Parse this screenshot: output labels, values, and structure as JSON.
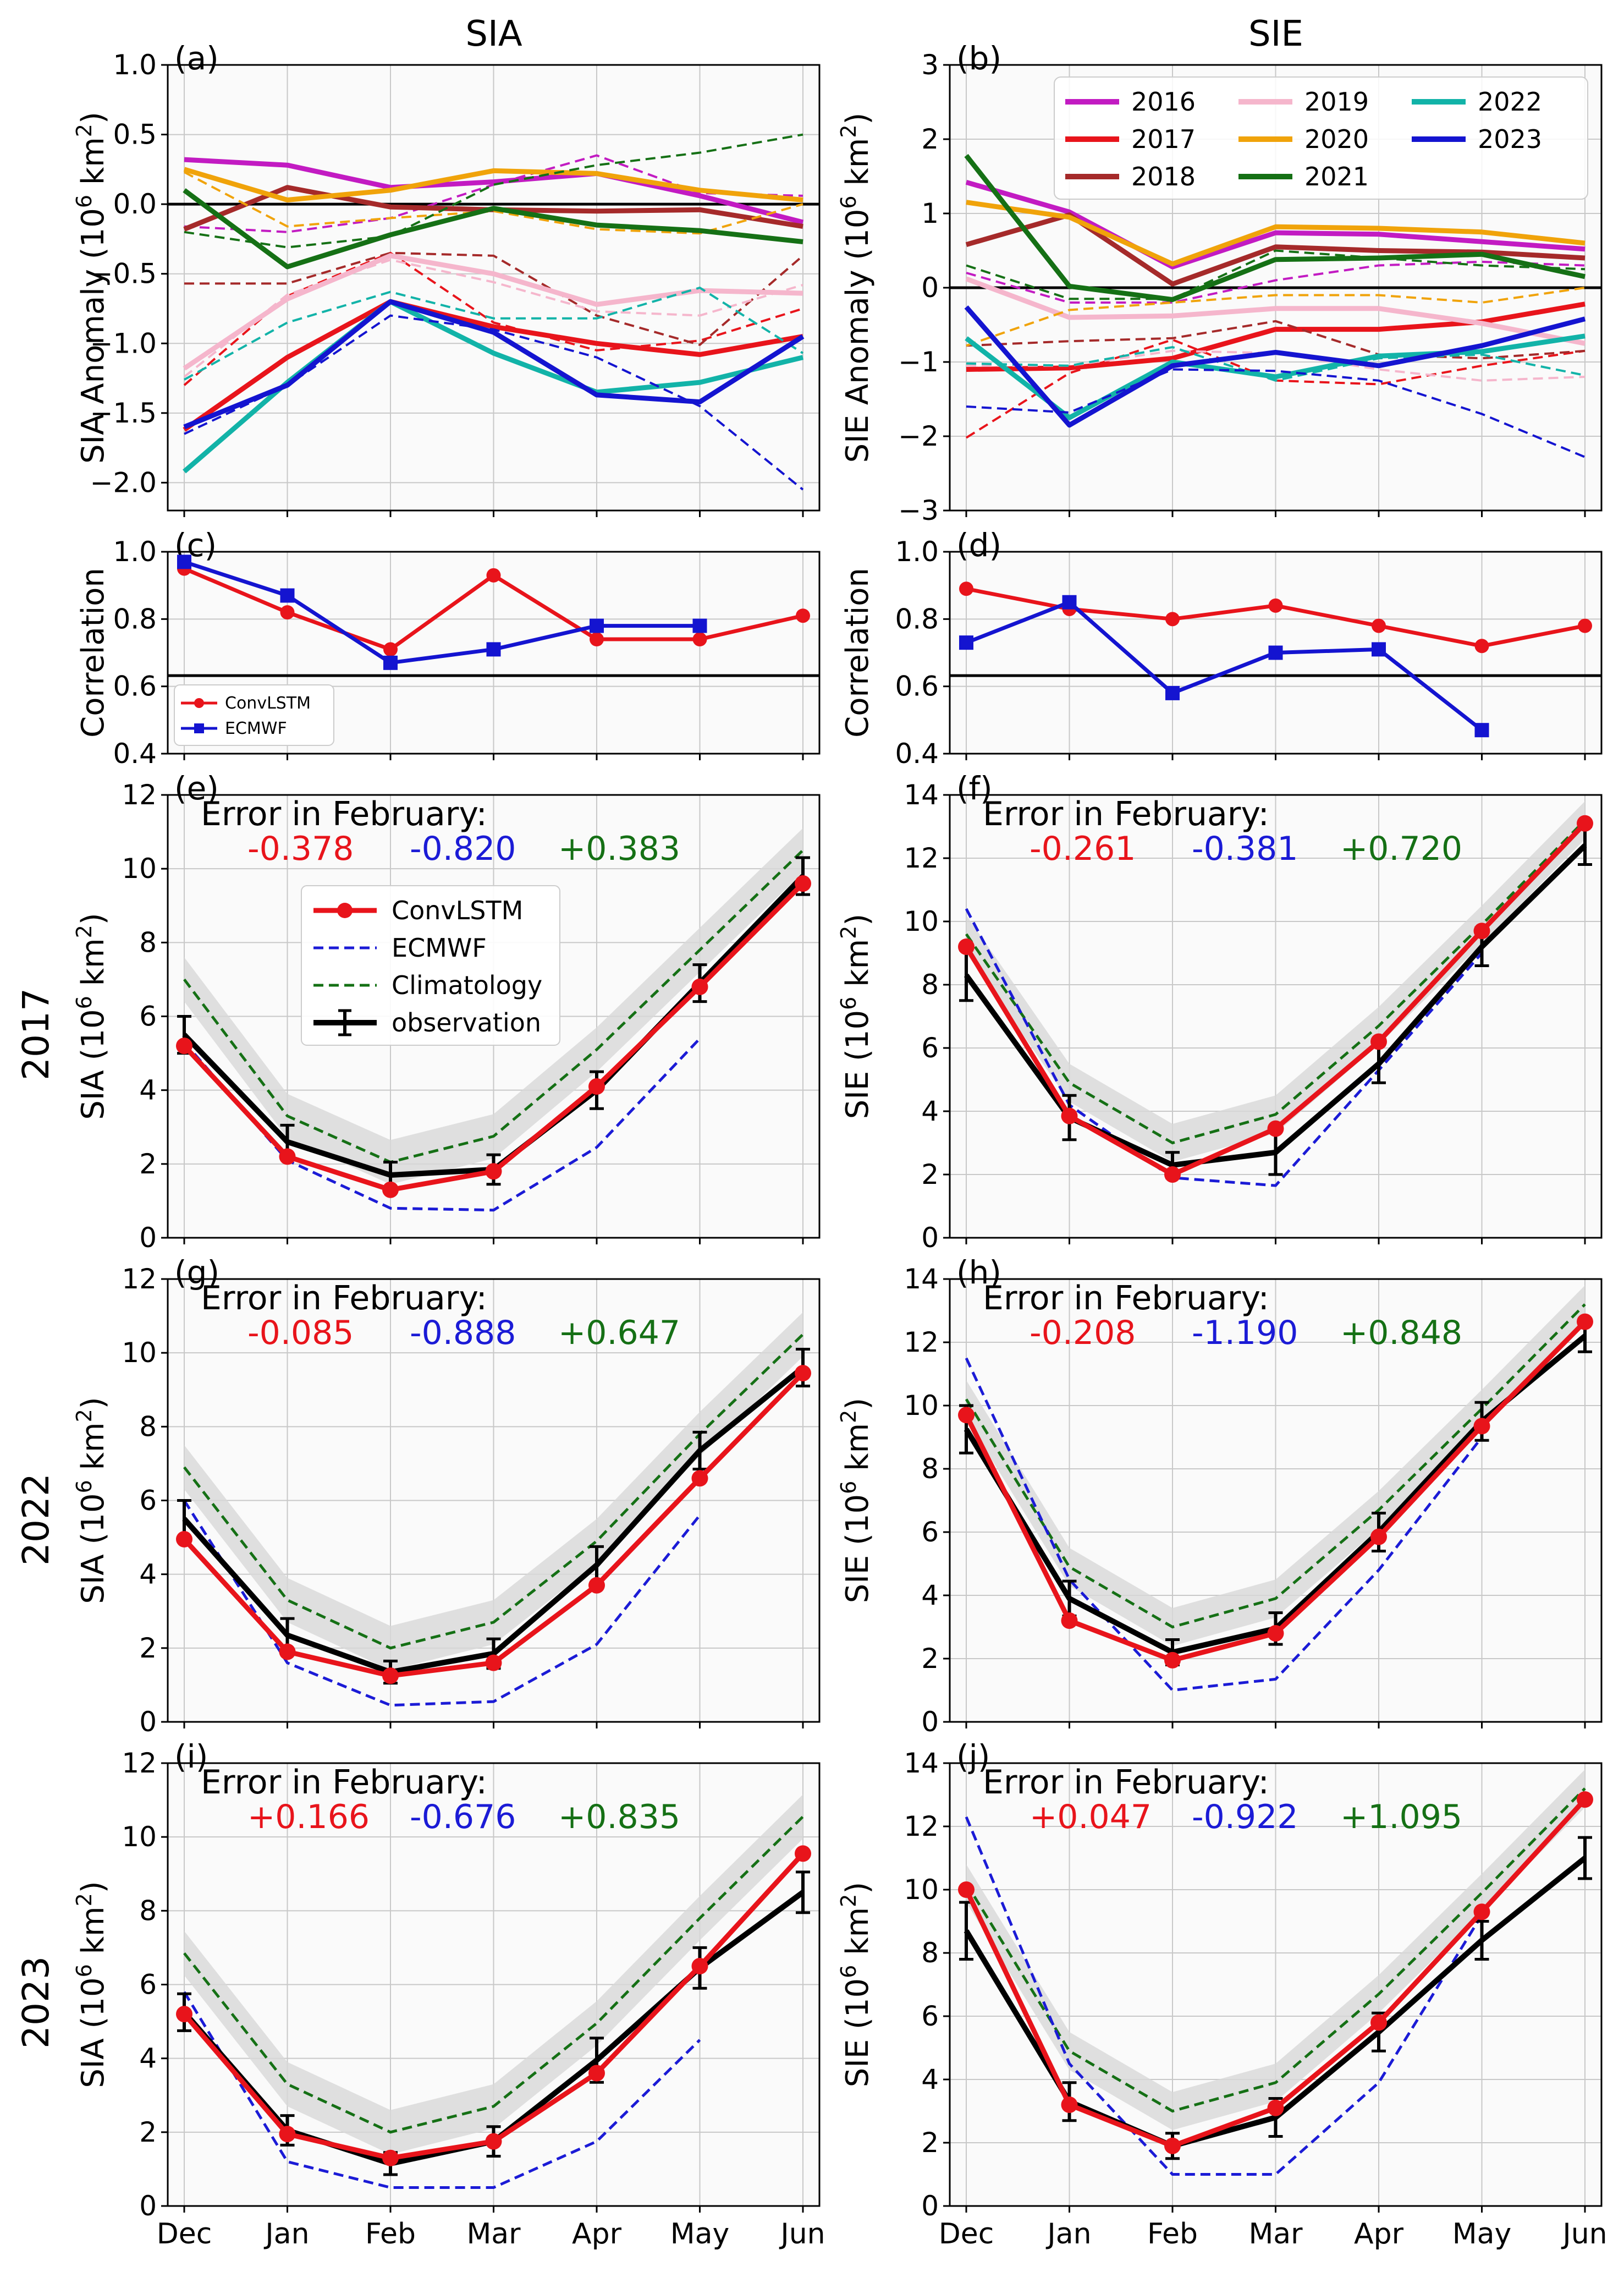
{
  "figure": {
    "col_titles": [
      "SIA",
      "SIE"
    ],
    "colors": {
      "convlstm": "#e8141b",
      "ecmwf": "#1b1bd6",
      "clim": "#157015",
      "obs": "#000000",
      "band": "#d8d8d8"
    },
    "months": [
      "Dec",
      "Jan",
      "Feb",
      "Mar",
      "Apr",
      "May",
      "Jun"
    ],
    "row_labels": [
      "2017",
      "2022",
      "2023"
    ],
    "error_title": "Error in February:"
  },
  "chart_data": [
    {
      "panel": "(a)",
      "type": "line",
      "ylabel": "SIA Anomaly (10^6 km^2)",
      "ylim": [
        -2.2,
        1.0
      ],
      "yticks": [
        -2.0,
        -1.5,
        -1.0,
        -0.5,
        0.0,
        0.5,
        1.0
      ],
      "ytick_labels": [
        "−2.0",
        "−1.5",
        "−1.0",
        "−0.5",
        "0.0",
        "0.5",
        "1.0"
      ],
      "zero_line": true,
      "series": [
        {
          "name": "2016",
          "color": "#c21bc2",
          "solid": [
            0.32,
            0.28,
            0.12,
            0.16,
            0.22,
            0.06,
            -0.13
          ],
          "dashed": [
            -0.16,
            -0.2,
            -0.1,
            0.14,
            0.35,
            0.08,
            0.06
          ]
        },
        {
          "name": "2017",
          "color": "#e8141b",
          "solid": [
            -1.62,
            -1.1,
            -0.7,
            -0.88,
            -1.0,
            -1.08,
            -0.95
          ],
          "dashed": [
            -1.3,
            -0.66,
            -0.35,
            -0.85,
            -1.05,
            -0.98,
            -0.75
          ]
        },
        {
          "name": "2018",
          "color": "#a52a2a",
          "solid": [
            -0.18,
            0.12,
            -0.02,
            -0.04,
            -0.05,
            -0.04,
            -0.16
          ],
          "dashed": [
            -0.57,
            -0.57,
            -0.35,
            -0.37,
            -0.8,
            -1.01,
            -0.37
          ]
        },
        {
          "name": "2019",
          "color": "#f5b6cc",
          "solid": [
            -1.18,
            -0.68,
            -0.37,
            -0.5,
            -0.72,
            -0.62,
            -0.64
          ],
          "dashed": [
            -1.24,
            -0.65,
            -0.4,
            -0.56,
            -0.77,
            -0.8,
            -0.58
          ]
        },
        {
          "name": "2020",
          "color": "#f0a30a",
          "solid": [
            0.25,
            0.03,
            0.1,
            0.24,
            0.22,
            0.1,
            0.03
          ],
          "dashed": [
            0.23,
            -0.16,
            -0.1,
            -0.05,
            -0.18,
            -0.21,
            0.0
          ]
        },
        {
          "name": "2021",
          "color": "#157015",
          "solid": [
            0.1,
            -0.45,
            -0.22,
            -0.03,
            -0.15,
            -0.19,
            -0.27
          ],
          "dashed": [
            -0.2,
            -0.31,
            -0.23,
            0.14,
            0.28,
            0.37,
            0.5
          ]
        },
        {
          "name": "2022",
          "color": "#12b3a8",
          "solid": [
            -1.92,
            -1.28,
            -0.7,
            -1.07,
            -1.35,
            -1.28,
            -1.1
          ],
          "dashed": [
            -1.26,
            -0.85,
            -0.63,
            -0.82,
            -0.82,
            -0.6,
            -1.07
          ]
        },
        {
          "name": "2023",
          "color": "#1414d0",
          "solid": [
            -1.6,
            -1.3,
            -0.7,
            -0.92,
            -1.37,
            -1.42,
            -0.95
          ],
          "dashed": [
            -1.65,
            -1.3,
            -0.8,
            -0.9,
            -1.1,
            -1.45,
            -2.05
          ]
        }
      ]
    },
    {
      "panel": "(b)",
      "type": "line",
      "ylabel": "SIE Anomaly (10^6 km^2)",
      "ylim": [
        -3,
        3
      ],
      "yticks": [
        -3,
        -2,
        -1,
        0,
        1,
        2,
        3
      ],
      "ytick_labels": [
        "−3",
        "−2",
        "−1",
        "0",
        "1",
        "2",
        "3"
      ],
      "zero_line": true,
      "legend": [
        "2016",
        "2017",
        "2018",
        "2019",
        "2020",
        "2021",
        "2022",
        "2023"
      ],
      "series": [
        {
          "name": "2016",
          "color": "#c21bc2",
          "solid": [
            1.42,
            1.02,
            0.28,
            0.74,
            0.72,
            0.62,
            0.52
          ],
          "dashed": [
            0.2,
            -0.2,
            -0.2,
            0.1,
            0.3,
            0.35,
            0.3
          ]
        },
        {
          "name": "2017",
          "color": "#e8141b",
          "solid": [
            -1.1,
            -1.08,
            -0.95,
            -0.56,
            -0.56,
            -0.46,
            -0.22
          ],
          "dashed": [
            -2.02,
            -1.15,
            -0.7,
            -1.25,
            -1.3,
            -1.05,
            -0.85
          ]
        },
        {
          "name": "2018",
          "color": "#a52a2a",
          "solid": [
            0.58,
            0.98,
            0.05,
            0.55,
            0.5,
            0.48,
            0.4
          ],
          "dashed": [
            -0.78,
            -0.72,
            -0.68,
            -0.45,
            -0.9,
            -0.95,
            -0.85
          ]
        },
        {
          "name": "2019",
          "color": "#f5b6cc",
          "solid": [
            0.12,
            -0.4,
            -0.38,
            -0.28,
            -0.28,
            -0.48,
            -0.75
          ],
          "dashed": [
            -1.05,
            -1.05,
            -0.85,
            -0.88,
            -1.1,
            -1.25,
            -1.2
          ]
        },
        {
          "name": "2020",
          "color": "#f0a30a",
          "solid": [
            1.15,
            0.95,
            0.32,
            0.82,
            0.8,
            0.75,
            0.6
          ],
          "dashed": [
            -0.78,
            -0.3,
            -0.2,
            -0.1,
            -0.1,
            -0.2,
            0.0
          ]
        },
        {
          "name": "2021",
          "color": "#157015",
          "solid": [
            1.78,
            0.02,
            -0.16,
            0.38,
            0.4,
            0.45,
            0.15
          ],
          "dashed": [
            0.3,
            -0.15,
            -0.15,
            0.5,
            0.4,
            0.3,
            0.25
          ]
        },
        {
          "name": "2022",
          "color": "#12b3a8",
          "solid": [
            -0.68,
            -1.75,
            -1.0,
            -1.2,
            -0.92,
            -0.86,
            -0.65
          ],
          "dashed": [
            -1.02,
            -1.05,
            -0.8,
            -1.25,
            -0.95,
            -0.9,
            -1.18
          ]
        },
        {
          "name": "2023",
          "color": "#1414d0",
          "solid": [
            -0.26,
            -1.85,
            -1.05,
            -0.87,
            -1.05,
            -0.78,
            -0.42
          ],
          "dashed": [
            -1.6,
            -1.68,
            -1.1,
            -1.12,
            -1.25,
            -1.7,
            -2.28
          ]
        }
      ]
    },
    {
      "panel": "(c)",
      "type": "line",
      "ylabel": "Correlation",
      "ylim": [
        0.4,
        1.0
      ],
      "yticks": [
        0.4,
        0.6,
        0.8,
        1.0
      ],
      "ytick_labels": [
        "0.4",
        "0.6",
        "0.8",
        "1.0"
      ],
      "hline": 0.632,
      "legend": [
        "ConvLSTM",
        "ECMWF"
      ],
      "series": [
        {
          "name": "ConvLSTM",
          "color": "#e8141b",
          "marker": "circle",
          "values": [
            0.95,
            0.82,
            0.71,
            0.93,
            0.74,
            0.74,
            0.81
          ]
        },
        {
          "name": "ECMWF",
          "color": "#1414d0",
          "marker": "square",
          "values": [
            0.97,
            0.87,
            0.67,
            0.71,
            0.78,
            0.78,
            null
          ]
        }
      ]
    },
    {
      "panel": "(d)",
      "type": "line",
      "ylabel": "Correlation",
      "ylim": [
        0.4,
        1.0
      ],
      "yticks": [
        0.4,
        0.6,
        0.8,
        1.0
      ],
      "ytick_labels": [
        "0.4",
        "0.6",
        "0.8",
        "1.0"
      ],
      "hline": 0.632,
      "series": [
        {
          "name": "ConvLSTM",
          "color": "#e8141b",
          "marker": "circle",
          "values": [
            0.89,
            0.83,
            0.8,
            0.84,
            0.78,
            0.72,
            0.78
          ]
        },
        {
          "name": "ECMWF",
          "color": "#1414d0",
          "marker": "square",
          "values": [
            0.73,
            0.85,
            0.58,
            0.7,
            0.71,
            0.47,
            null
          ]
        }
      ]
    },
    {
      "panel": "(e)",
      "type": "line",
      "ylabel": "SIA (10^6 km^2)",
      "ylim": [
        0,
        12
      ],
      "yticks": [
        0,
        2,
        4,
        6,
        8,
        10,
        12
      ],
      "ytick_labels": [
        "0",
        "2",
        "4",
        "6",
        "8",
        "10",
        "12"
      ],
      "legend": [
        "ConvLSTM",
        "ECMWF",
        "Climatology",
        "observation"
      ],
      "errors": [
        "-0.378",
        "-0.820",
        "+0.383"
      ],
      "convlstm": [
        5.2,
        2.2,
        1.3,
        1.8,
        4.1,
        6.8,
        9.6
      ],
      "ecmwf": [
        5.3,
        2.1,
        0.8,
        0.75,
        2.45,
        5.4,
        null
      ],
      "climatology": [
        7.0,
        3.3,
        2.05,
        2.75,
        5.1,
        7.8,
        10.5
      ],
      "obs": [
        5.5,
        2.6,
        1.7,
        1.85,
        4.0,
        6.9,
        9.8
      ],
      "obs_err": [
        0.5,
        0.45,
        0.35,
        0.4,
        0.5,
        0.5,
        0.5
      ],
      "band": 0.6
    },
    {
      "panel": "(f)",
      "type": "line",
      "ylabel": "SIE (10^6 km^2)",
      "ylim": [
        0,
        14
      ],
      "yticks": [
        0,
        2,
        4,
        6,
        8,
        10,
        12,
        14
      ],
      "ytick_labels": [
        "0",
        "2",
        "4",
        "6",
        "8",
        "10",
        "12",
        "14"
      ],
      "errors": [
        "-0.261",
        "-0.381",
        "+0.720"
      ],
      "convlstm": [
        9.2,
        3.85,
        2.0,
        3.45,
        6.2,
        9.7,
        13.1
      ],
      "ecmwf": [
        10.4,
        4.2,
        1.9,
        1.65,
        5.3,
        9.0,
        null
      ],
      "climatology": [
        9.6,
        4.9,
        3.0,
        3.9,
        6.7,
        9.9,
        13.2
      ],
      "obs": [
        8.3,
        3.8,
        2.3,
        2.7,
        5.5,
        9.2,
        12.4
      ],
      "obs_err": [
        0.8,
        0.7,
        0.4,
        0.7,
        0.6,
        0.6,
        0.6
      ],
      "band": 0.6
    },
    {
      "panel": "(g)",
      "type": "line",
      "ylabel": "SIA (10^6 km^2)",
      "ylim": [
        0,
        12
      ],
      "yticks": [
        0,
        2,
        4,
        6,
        8,
        10,
        12
      ],
      "ytick_labels": [
        "0",
        "2",
        "4",
        "6",
        "8",
        "10",
        "12"
      ],
      "errors": [
        "-0.085",
        "-0.888",
        "+0.647"
      ],
      "convlstm": [
        4.95,
        1.9,
        1.25,
        1.6,
        3.7,
        6.6,
        9.45
      ],
      "ecmwf": [
        6.0,
        1.6,
        0.45,
        0.55,
        2.1,
        5.6,
        null
      ],
      "climatology": [
        6.9,
        3.3,
        2.0,
        2.7,
        4.9,
        7.8,
        10.5
      ],
      "obs": [
        5.5,
        2.35,
        1.35,
        1.85,
        4.25,
        7.35,
        9.6
      ],
      "obs_err": [
        0.5,
        0.45,
        0.3,
        0.4,
        0.5,
        0.5,
        0.5
      ],
      "band": 0.6
    },
    {
      "panel": "(h)",
      "type": "line",
      "ylabel": "SIE (10^6 km^2)",
      "ylim": [
        0,
        14
      ],
      "yticks": [
        0,
        2,
        4,
        6,
        8,
        10,
        12,
        14
      ],
      "ytick_labels": [
        "0",
        "2",
        "4",
        "6",
        "8",
        "10",
        "12",
        "14"
      ],
      "errors": [
        "-0.208",
        "-1.190",
        "+0.848"
      ],
      "convlstm": [
        9.7,
        3.2,
        1.95,
        2.8,
        5.85,
        9.35,
        12.65
      ],
      "ecmwf": [
        11.5,
        4.5,
        1.0,
        1.35,
        4.8,
        9.0,
        null
      ],
      "climatology": [
        10.2,
        4.9,
        3.0,
        3.9,
        6.7,
        9.9,
        13.2
      ],
      "obs": [
        9.25,
        3.9,
        2.2,
        2.95,
        6.0,
        9.5,
        12.2
      ],
      "obs_err": [
        0.75,
        0.55,
        0.4,
        0.5,
        0.6,
        0.6,
        0.5
      ],
      "band": 0.6
    },
    {
      "panel": "(i)",
      "type": "line",
      "ylabel": "SIA (10^6 km^2)",
      "ylim": [
        0,
        12
      ],
      "yticks": [
        0,
        2,
        4,
        6,
        8,
        10,
        12
      ],
      "ytick_labels": [
        "0",
        "2",
        "4",
        "6",
        "8",
        "10",
        "12"
      ],
      "errors": [
        "+0.166",
        "-0.676",
        "+0.835"
      ],
      "convlstm": [
        5.2,
        1.95,
        1.3,
        1.75,
        3.6,
        6.5,
        9.55
      ],
      "ecmwf": [
        5.8,
        1.2,
        0.5,
        0.5,
        1.75,
        4.5,
        null
      ],
      "climatology": [
        6.85,
        3.3,
        2.0,
        2.7,
        4.95,
        7.8,
        10.55
      ],
      "obs": [
        5.25,
        2.05,
        1.15,
        1.75,
        3.95,
        6.45,
        8.5
      ],
      "obs_err": [
        0.5,
        0.4,
        0.3,
        0.4,
        0.6,
        0.55,
        0.55
      ],
      "band": 0.6
    },
    {
      "panel": "(j)",
      "type": "line",
      "ylabel": "SIE (10^6 km^2)",
      "ylim": [
        0,
        14
      ],
      "yticks": [
        0,
        2,
        4,
        6,
        8,
        10,
        12,
        14
      ],
      "ytick_labels": [
        "0",
        "2",
        "4",
        "6",
        "8",
        "10",
        "12",
        "14"
      ],
      "errors": [
        "+0.047",
        "-0.922",
        "+1.095"
      ],
      "convlstm": [
        10.0,
        3.2,
        1.9,
        3.1,
        5.8,
        9.3,
        12.85
      ],
      "ecmwf": [
        12.3,
        4.5,
        1.0,
        1.0,
        3.9,
        9.2,
        null
      ],
      "climatology": [
        10.2,
        4.9,
        3.0,
        3.9,
        6.7,
        9.9,
        13.2
      ],
      "obs": [
        8.7,
        3.3,
        1.9,
        2.8,
        5.5,
        8.4,
        11.0
      ],
      "obs_err": [
        0.9,
        0.6,
        0.4,
        0.6,
        0.6,
        0.6,
        0.65
      ],
      "band": 0.6
    }
  ]
}
